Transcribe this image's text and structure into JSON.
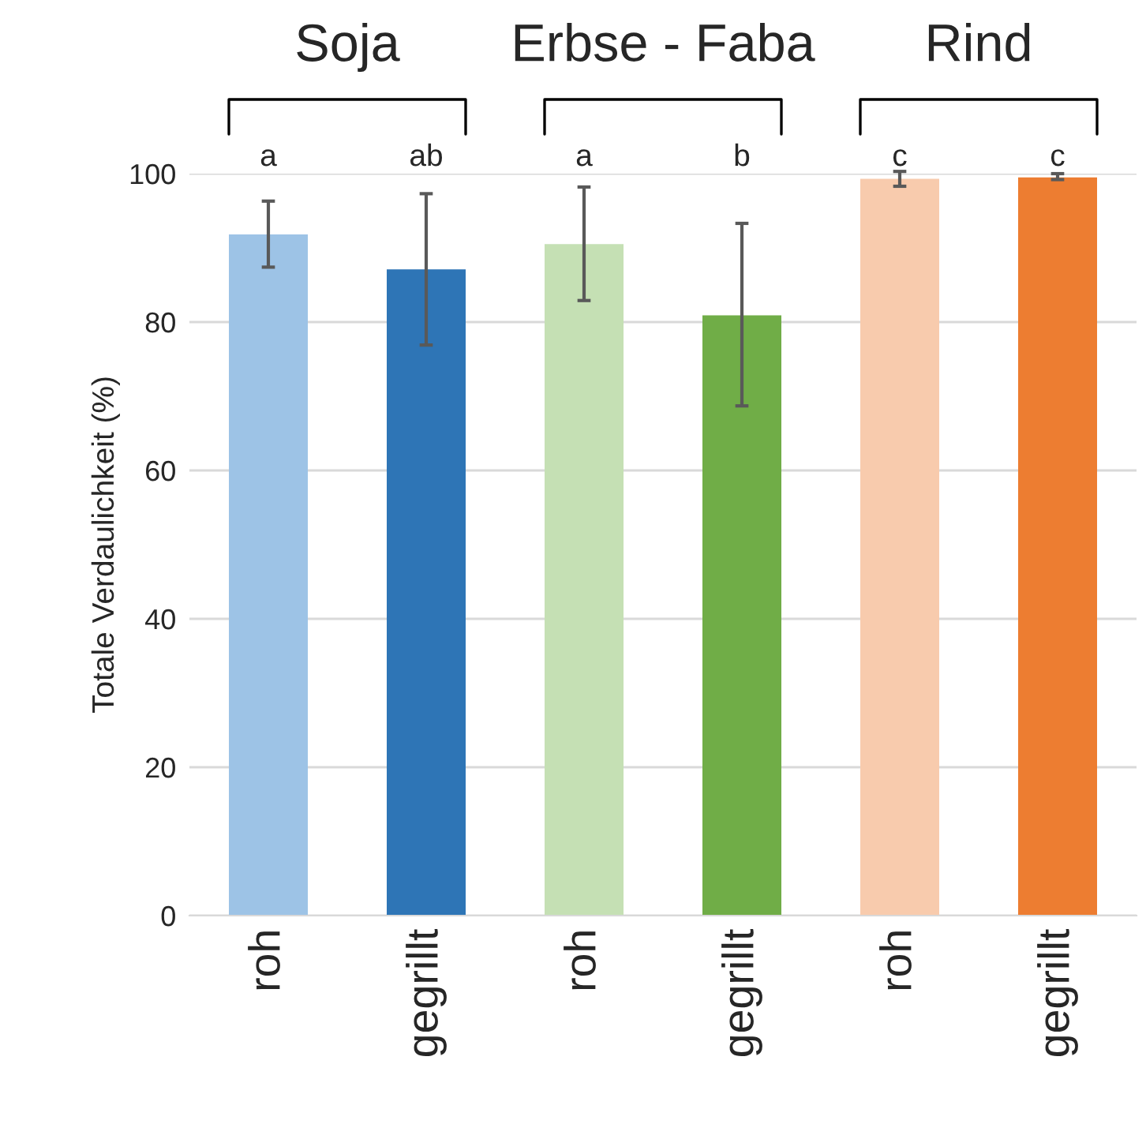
{
  "chart_data": {
    "type": "bar",
    "ylabel": "Totale Verdaulichkeit (%)",
    "categories": [
      "roh",
      "gegrillt",
      "roh",
      "gegrillt",
      "roh",
      "gegrillt"
    ],
    "values": [
      91.8,
      87.1,
      90.5,
      80.9,
      99.3,
      99.5
    ],
    "colors": [
      "#9dc3e6",
      "#2e75b6",
      "#c5e0b4",
      "#70ad47",
      "#f8cbad",
      "#ed7d31"
    ],
    "errors": [
      [
        87.4,
        96.3
      ],
      [
        76.9,
        97.3
      ],
      [
        82.9,
        98.2
      ],
      [
        68.7,
        93.3
      ],
      [
        98.3,
        100.3
      ],
      [
        99.2,
        100.0
      ]
    ],
    "ylim": [
      0,
      100
    ],
    "yticks": [
      0,
      20,
      40,
      60,
      80,
      100
    ],
    "grid": "y",
    "annotations": [
      "Soja",
      "Erbse - Faba",
      "Rind",
      "a",
      "ab",
      "a",
      "b",
      "c",
      "c"
    ]
  }
}
